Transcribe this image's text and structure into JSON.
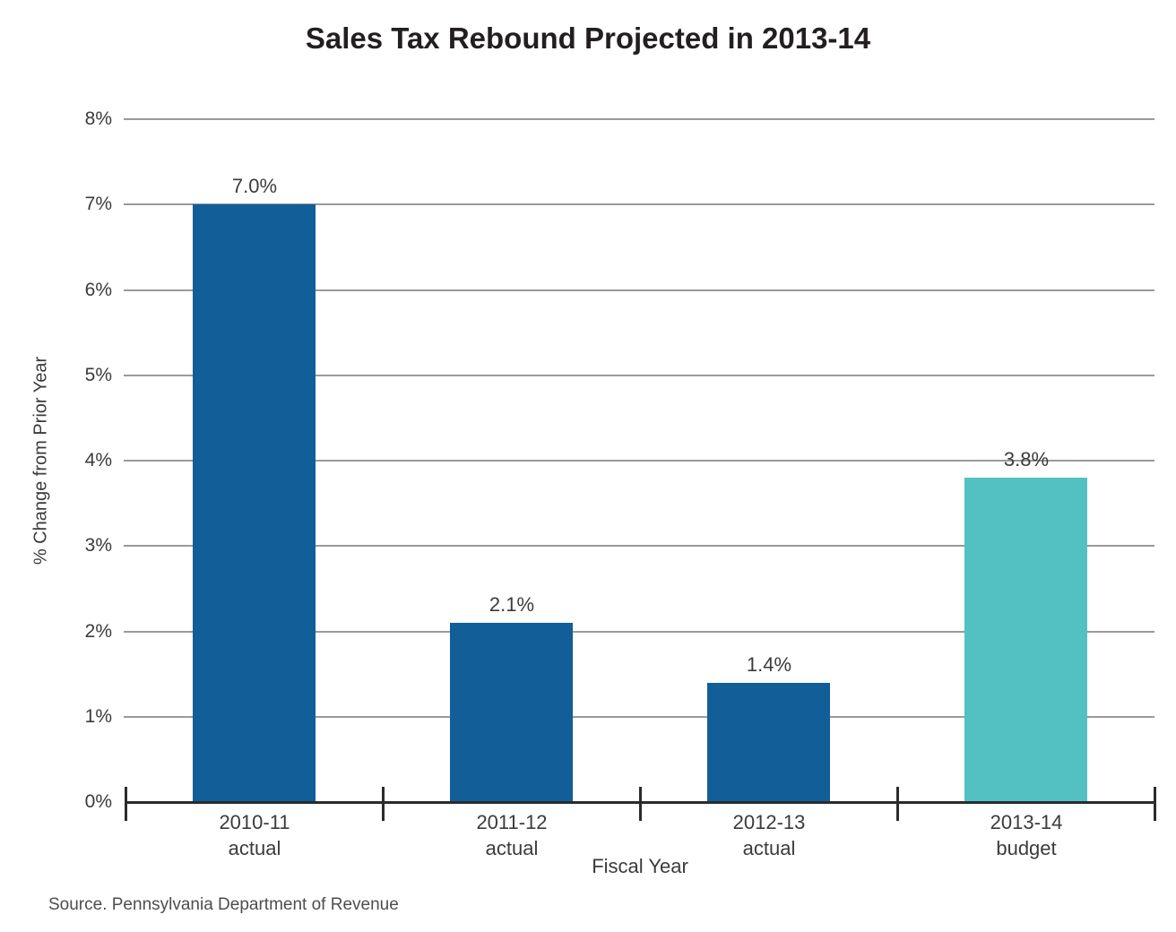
{
  "chart_data": {
    "type": "bar",
    "title": "Sales Tax Rebound Projected in 2013-14",
    "xlabel": "Fiscal Year",
    "ylabel": "% Change from Prior Year",
    "categories": [
      {
        "line1": "2010-11",
        "line2": "actual"
      },
      {
        "line1": "2011-12",
        "line2": "actual"
      },
      {
        "line1": "2012-13",
        "line2": "actual"
      },
      {
        "line1": "2013-14",
        "line2": "budget"
      }
    ],
    "values": [
      7.0,
      2.1,
      1.4,
      3.8
    ],
    "bar_labels": [
      "7.0%",
      "2.1%",
      "1.4%",
      "3.8%"
    ],
    "bar_colors": [
      "#115e98",
      "#115e98",
      "#115e98",
      "#53c1c2"
    ],
    "ylim": [
      0,
      8
    ],
    "ytick_labels": [
      "0%",
      "1%",
      "2%",
      "3%",
      "4%",
      "5%",
      "6%",
      "7%",
      "8%"
    ],
    "grid": "horizontal",
    "legend": "none",
    "colors": {
      "actual_bar": "#115e98",
      "budget_bar": "#53c1c2",
      "gridline": "#9a9a9c",
      "axis": "#2b2b2d",
      "title_text": "#231f20",
      "label_text": "#3b3b3d",
      "source_text": "#4d4d4f"
    },
    "source": "Source. Pennsylvania Department of Revenue"
  }
}
